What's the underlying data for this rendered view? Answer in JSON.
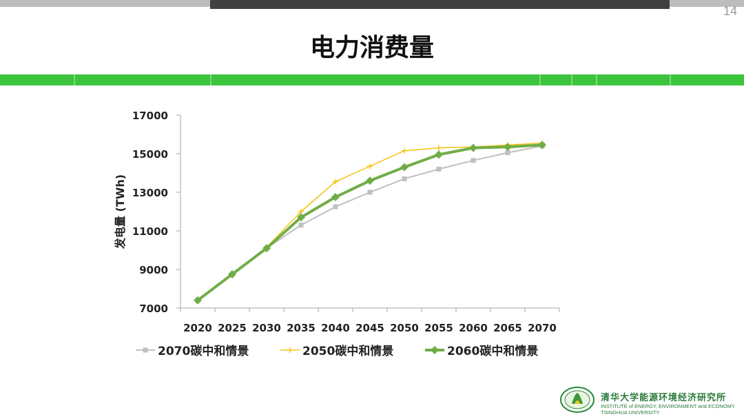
{
  "page_number": "14",
  "title": "电力消费量",
  "colors": {
    "series_2070": "#bfbfbf",
    "series_2050": "#f5c518",
    "series_2060": "#70ad47",
    "band_green": "#3dc43d"
  },
  "footer": {
    "institute_cn": "清华大学能源环境经济研究所",
    "institute_en_line1": "INSTITUTE of ENERGY, ENVIRONMENT and ECONOMY",
    "institute_en_line2": "TSINGHUA UNIVERSITY"
  },
  "chart_data": {
    "type": "line",
    "title": "",
    "xlabel": "",
    "ylabel": "发电量 (TWh)",
    "ylim": [
      7000,
      17000
    ],
    "yticks": [
      7000,
      9000,
      11000,
      13000,
      15000,
      17000
    ],
    "categories": [
      "2020",
      "2025",
      "2030",
      "2035",
      "2040",
      "2045",
      "2050",
      "2055",
      "2060",
      "2065",
      "2070"
    ],
    "grid": false,
    "legend_position": "bottom",
    "series": [
      {
        "name": "2070碳中和情景",
        "marker": "square",
        "color": "#bfbfbf",
        "values": [
          7400,
          8750,
          10100,
          11300,
          12250,
          13000,
          13700,
          14200,
          14650,
          15050,
          15400
        ]
      },
      {
        "name": "2050碳中和情景",
        "marker": "cross",
        "color": "#f5c518",
        "values": [
          7400,
          8750,
          10150,
          12000,
          13550,
          14350,
          15150,
          15300,
          15350,
          15450,
          15550
        ]
      },
      {
        "name": "2060碳中和情景",
        "marker": "diamond",
        "color": "#70ad47",
        "values": [
          7400,
          8750,
          10100,
          11700,
          12750,
          13600,
          14300,
          14950,
          15300,
          15350,
          15450
        ]
      }
    ]
  }
}
